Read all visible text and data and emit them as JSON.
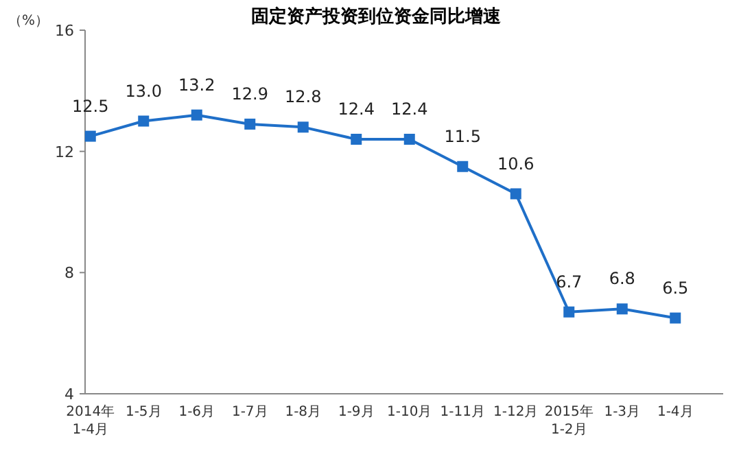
{
  "chart_data": {
    "type": "line",
    "title": "固定资产投资到位资金同比增速",
    "ylabel": "（%）",
    "categories": [
      "2014年\n1-4月",
      "1-5月",
      "1-6月",
      "1-7月",
      "1-8月",
      "1-9月",
      "1-10月",
      "1-11月",
      "1-12月",
      "2015年\n1-2月",
      "1-3月",
      "1-4月"
    ],
    "series": [
      {
        "color": "#1f6fc8",
        "values": [
          12.5,
          13.0,
          13.2,
          12.9,
          12.8,
          12.4,
          12.4,
          11.5,
          10.6,
          6.7,
          6.8,
          6.5
        ],
        "value_labels": [
          "12.5",
          "13.0",
          "13.2",
          "12.9",
          "12.8",
          "12.4",
          "12.4",
          "11.5",
          "10.6",
          "6.7",
          "6.8",
          "6.5"
        ]
      }
    ],
    "ylim": [
      4,
      16
    ],
    "yticks": [
      4,
      8,
      12,
      16
    ],
    "grid": false,
    "marker": "square",
    "line_style": "solid"
  }
}
